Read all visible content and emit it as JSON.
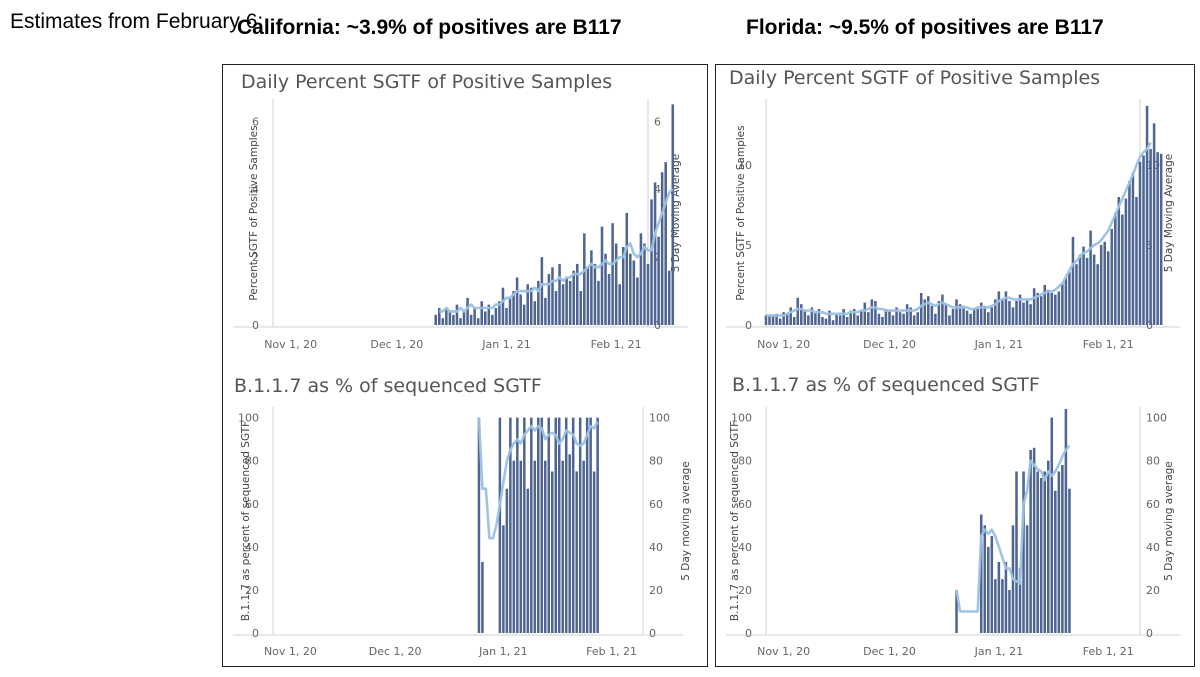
{
  "estimates_label": "Estimates from February 6:",
  "colors": {
    "bar": "#4e6591",
    "line": "#9bc1e4",
    "axis": "#d2d2d2",
    "text": "#666666"
  },
  "chart_data": [
    {
      "id": "ca_sgtf",
      "type": "bar",
      "region_title": "California: ~3.9% of positives are B117",
      "title": "Daily Percent SGTF of Positive Samples",
      "ylabel": "Percent SGTF of Positive Samples",
      "y2label": "5 Day Moving Average",
      "ylim": [
        0,
        6.6
      ],
      "yticks": [
        0,
        2,
        4,
        6
      ],
      "xlim": [
        0,
        106
      ],
      "xticks": [
        {
          "x": 5,
          "label": "Nov 1, 20"
        },
        {
          "x": 35,
          "label": "Dec 1, 20"
        },
        {
          "x": 66,
          "label": "Jan 1, 21"
        },
        {
          "x": 97,
          "label": "Feb 1, 21"
        }
      ],
      "bars_start_day": 46,
      "values": [
        0.3,
        0.5,
        0.2,
        0.5,
        0.4,
        0.3,
        0.6,
        0.2,
        0.4,
        0.8,
        0.3,
        0.5,
        0.2,
        0.7,
        0.4,
        0.6,
        0.3,
        0.5,
        0.7,
        1.1,
        0.5,
        0.8,
        1.0,
        1.4,
        0.9,
        0.6,
        1.2,
        1.1,
        0.7,
        1.3,
        2.0,
        0.8,
        1.5,
        1.7,
        1.0,
        1.8,
        1.2,
        1.4,
        1.3,
        1.6,
        1.8,
        1.0,
        2.7,
        1.7,
        2.2,
        1.8,
        1.3,
        2.9,
        2.1,
        1.5,
        3.0,
        2.4,
        1.2,
        2.3,
        3.3,
        2.1,
        1.9,
        1.4,
        2.7,
        2.4,
        1.8,
        3.7,
        4.2,
        2.6,
        4.5,
        4.8,
        1.6,
        6.5
      ],
      "ma_start_day": 47,
      "moving_average": [
        0.4,
        0.4,
        0.5,
        0.4,
        0.4,
        0.4,
        0.5,
        0.4,
        0.5,
        0.6,
        0.5,
        0.5,
        0.5,
        0.5,
        0.5,
        0.5,
        0.6,
        0.6,
        0.7,
        0.8,
        0.8,
        0.9,
        1.0,
        1.0,
        1.0,
        1.0,
        1.0,
        1.1,
        1.0,
        1.2,
        1.2,
        1.2,
        1.3,
        1.3,
        1.4,
        1.3,
        1.4,
        1.4,
        1.5,
        1.5,
        1.5,
        1.6,
        1.7,
        1.8,
        1.7,
        1.7,
        1.8,
        1.9,
        1.8,
        1.8,
        1.9,
        2.0,
        2.0,
        2.3,
        2.4,
        2.1,
        2.0,
        2.1,
        2.3,
        2.2,
        2.2,
        2.7,
        3.0,
        3.3,
        3.6,
        3.9,
        4.0
      ],
      "panel": "ca",
      "chart": "top"
    },
    {
      "id": "ca_b117",
      "type": "bar",
      "title": "B.1.1.7 as % of sequenced SGTF",
      "ylabel": "B.1.1.7 as percent of sequenced SGTF",
      "y2label": "5 Day moving average",
      "ylim": [
        0,
        104
      ],
      "yticks": [
        0,
        20,
        40,
        60,
        80,
        100
      ],
      "xlim": [
        0,
        106
      ],
      "xticks": [
        {
          "x": 5,
          "label": "Nov 1, 20"
        },
        {
          "x": 35,
          "label": "Dec 1, 20"
        },
        {
          "x": 66,
          "label": "Jan 1, 21"
        },
        {
          "x": 97,
          "label": "Feb 1, 21"
        }
      ],
      "bars_start_day": 59,
      "values": [
        100,
        33,
        0,
        0,
        0,
        0,
        100,
        50,
        67,
        100,
        80,
        100,
        80,
        100,
        67,
        100,
        80,
        100,
        100,
        80,
        100,
        75,
        100,
        100,
        80,
        100,
        83,
        100,
        75,
        100,
        80,
        100,
        100,
        75,
        100
      ],
      "ma_start_day": 59,
      "moving_average": [
        100,
        67,
        67,
        44,
        44,
        50,
        60,
        70,
        80,
        85,
        88,
        90,
        88,
        92,
        94,
        96,
        94,
        96,
        95,
        90,
        92,
        93,
        92,
        88,
        90,
        94,
        93,
        92,
        88,
        87,
        88,
        92,
        96,
        95,
        98
      ],
      "panel": "ca",
      "chart": "bottom"
    },
    {
      "id": "fl_sgtf",
      "type": "bar",
      "region_title": "Florida: ~9.5% of positives are B117",
      "title": "Daily Percent SGTF of Positive Samples",
      "ylabel": "Percent SGTF of Positive Samples",
      "y2label": "5 Day Moving Average",
      "ylim": [
        0,
        14
      ],
      "yticks": [
        0,
        5,
        10
      ],
      "xlim": [
        0,
        106
      ],
      "xticks": [
        {
          "x": 5,
          "label": "Nov 1, 20"
        },
        {
          "x": 35,
          "label": "Dec 1, 20"
        },
        {
          "x": 66,
          "label": "Jan 1, 21"
        },
        {
          "x": 97,
          "label": "Feb 1, 21"
        }
      ],
      "bars_start_day": 0,
      "values": [
        0.6,
        0.6,
        0.6,
        0.7,
        0.4,
        0.8,
        0.7,
        1.1,
        0.5,
        1.7,
        1.3,
        0.9,
        0.6,
        1.1,
        0.8,
        1.0,
        0.5,
        0.4,
        0.9,
        0.3,
        0.7,
        0.6,
        1.0,
        0.5,
        0.9,
        1.0,
        0.6,
        0.9,
        1.4,
        0.8,
        1.6,
        1.5,
        0.7,
        0.5,
        1.0,
        0.9,
        0.6,
        1.1,
        0.8,
        0.7,
        1.3,
        1.1,
        0.6,
        0.8,
        2.0,
        1.6,
        1.8,
        1.2,
        0.7,
        1.5,
        1.9,
        1.3,
        0.6,
        1.0,
        1.6,
        1.3,
        1.2,
        0.9,
        0.7,
        1.0,
        1.0,
        1.4,
        1.2,
        0.8,
        1.1,
        1.6,
        2.1,
        1.6,
        2.1,
        1.5,
        1.1,
        1.5,
        1.9,
        1.4,
        1.6,
        1.3,
        2.3,
        2.0,
        1.8,
        2.5,
        2.2,
        2.0,
        1.9,
        2.1,
        2.6,
        3.0,
        3.3,
        5.5,
        3.8,
        4.4,
        4.9,
        4.2,
        5.9,
        4.4,
        3.8,
        5.0,
        5.2,
        4.6,
        6.0,
        7.0,
        8.0,
        6.9,
        7.9,
        9.0,
        9.5,
        8.0,
        10.2,
        10.6,
        13.7,
        11.0,
        12.6,
        10.8,
        10.7
      ],
      "ma_start_day": 0,
      "moving_average": [
        0.6,
        0.6,
        0.6,
        0.6,
        0.6,
        0.6,
        0.7,
        0.8,
        0.9,
        1.0,
        1.0,
        0.9,
        0.9,
        0.9,
        0.8,
        0.8,
        0.8,
        0.7,
        0.7,
        0.7,
        0.7,
        0.7,
        0.7,
        0.7,
        0.8,
        0.8,
        0.8,
        0.9,
        0.9,
        1.0,
        1.1,
        1.1,
        1.0,
        1.0,
        0.9,
        0.9,
        0.9,
        0.9,
        0.9,
        0.9,
        0.9,
        0.9,
        0.9,
        1.0,
        1.2,
        1.3,
        1.4,
        1.3,
        1.2,
        1.3,
        1.4,
        1.3,
        1.2,
        1.1,
        1.1,
        1.1,
        1.1,
        1.1,
        1.0,
        1.0,
        1.1,
        1.1,
        1.1,
        1.1,
        1.2,
        1.3,
        1.5,
        1.6,
        1.7,
        1.7,
        1.6,
        1.6,
        1.6,
        1.6,
        1.6,
        1.6,
        1.7,
        1.8,
        1.9,
        2.0,
        2.1,
        2.1,
        2.2,
        2.4,
        2.6,
        3.0,
        3.4,
        3.8,
        4.0,
        4.3,
        4.5,
        4.6,
        4.8,
        5.0,
        5.1,
        5.3,
        5.6,
        5.9,
        6.4,
        6.9,
        7.4,
        7.9,
        8.4,
        8.9,
        9.4,
        10.0,
        10.5,
        10.8,
        11.0,
        11.4
      ],
      "panel": "fl",
      "chart": "top"
    },
    {
      "id": "fl_b117",
      "type": "bar",
      "title": "B.1.1.7 as % of sequenced SGTF",
      "ylabel": "B.1.1.7 as percent of sequenced SGTF",
      "y2label": "5 Day moving average",
      "ylim": [
        0,
        104
      ],
      "yticks": [
        0,
        20,
        40,
        60,
        80,
        100
      ],
      "xlim": [
        0,
        106
      ],
      "xticks": [
        {
          "x": 5,
          "label": "Nov 1, 20"
        },
        {
          "x": 35,
          "label": "Dec 1, 20"
        },
        {
          "x": 66,
          "label": "Jan 1, 21"
        },
        {
          "x": 97,
          "label": "Feb 1, 21"
        }
      ],
      "bars_start_day": 54,
      "values": [
        20,
        0,
        0,
        0,
        0,
        0,
        0,
        55,
        50,
        40,
        45,
        25,
        33,
        25,
        33,
        20,
        50,
        75,
        30,
        75,
        50,
        85,
        86,
        75,
        72,
        75,
        80,
        100,
        66,
        75,
        78,
        104,
        67
      ],
      "ma_start_day": 54,
      "moving_average": [
        20,
        10,
        10,
        10,
        10,
        10,
        10,
        45,
        48,
        46,
        48,
        45,
        40,
        35,
        30,
        30,
        25,
        24,
        23,
        60,
        66,
        80,
        78,
        76,
        75,
        71,
        75,
        73,
        75,
        78,
        82,
        85,
        87
      ],
      "panel": "fl",
      "chart": "bottom"
    }
  ]
}
